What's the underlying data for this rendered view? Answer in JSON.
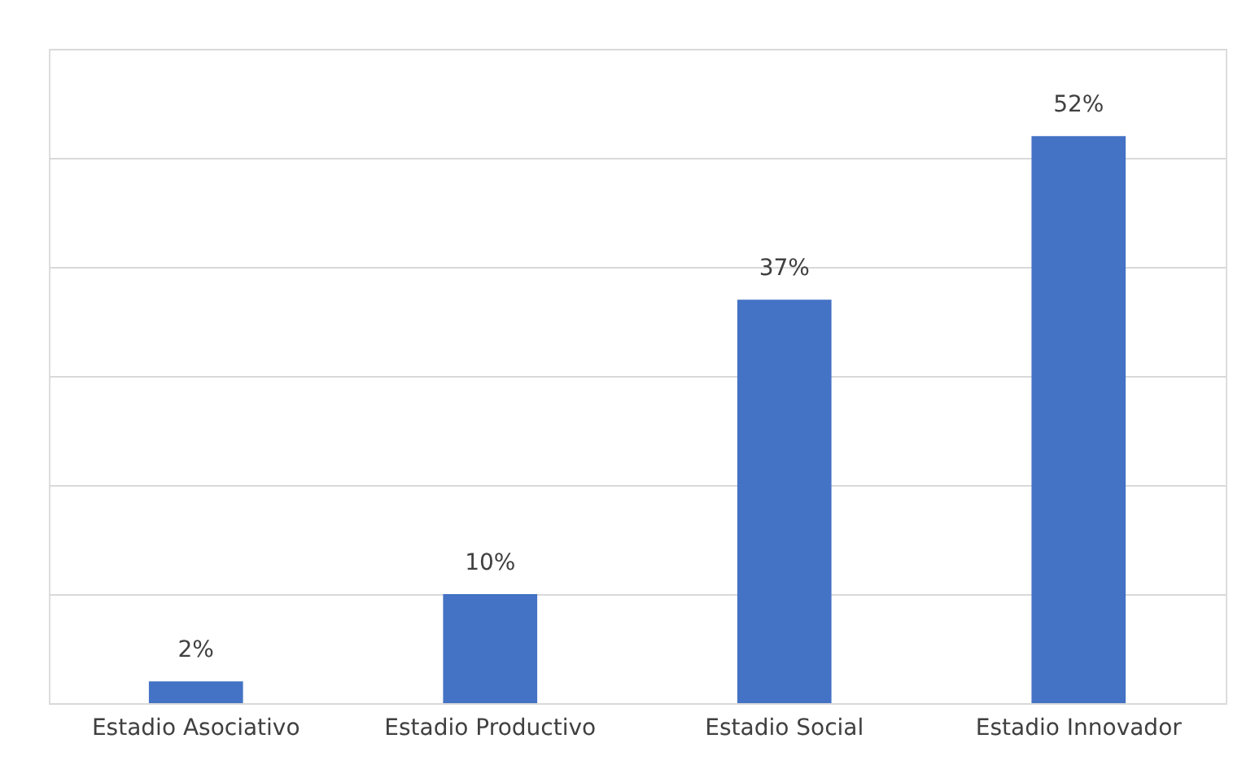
{
  "chart_data": {
    "type": "bar",
    "categories": [
      "Estadio Asociativo",
      "Estadio Productivo",
      "Estadio Social",
      "Estadio Innovador"
    ],
    "values": [
      2,
      10,
      37,
      52
    ],
    "color": "#4472c4",
    "value_labels": [
      "2%",
      "10%",
      "37%",
      "52%"
    ],
    "ylim": [
      0,
      60
    ],
    "yticks": [
      {
        "value": 0,
        "label": null
      },
      {
        "value": 10,
        "label": null
      },
      {
        "value": 20,
        "label": null
      },
      {
        "value": 30,
        "label": null
      },
      {
        "value": 40,
        "label": null
      },
      {
        "value": 50,
        "label": null
      },
      {
        "value": 60,
        "label": null
      }
    ],
    "grid": "y",
    "tick_labels": "x"
  }
}
